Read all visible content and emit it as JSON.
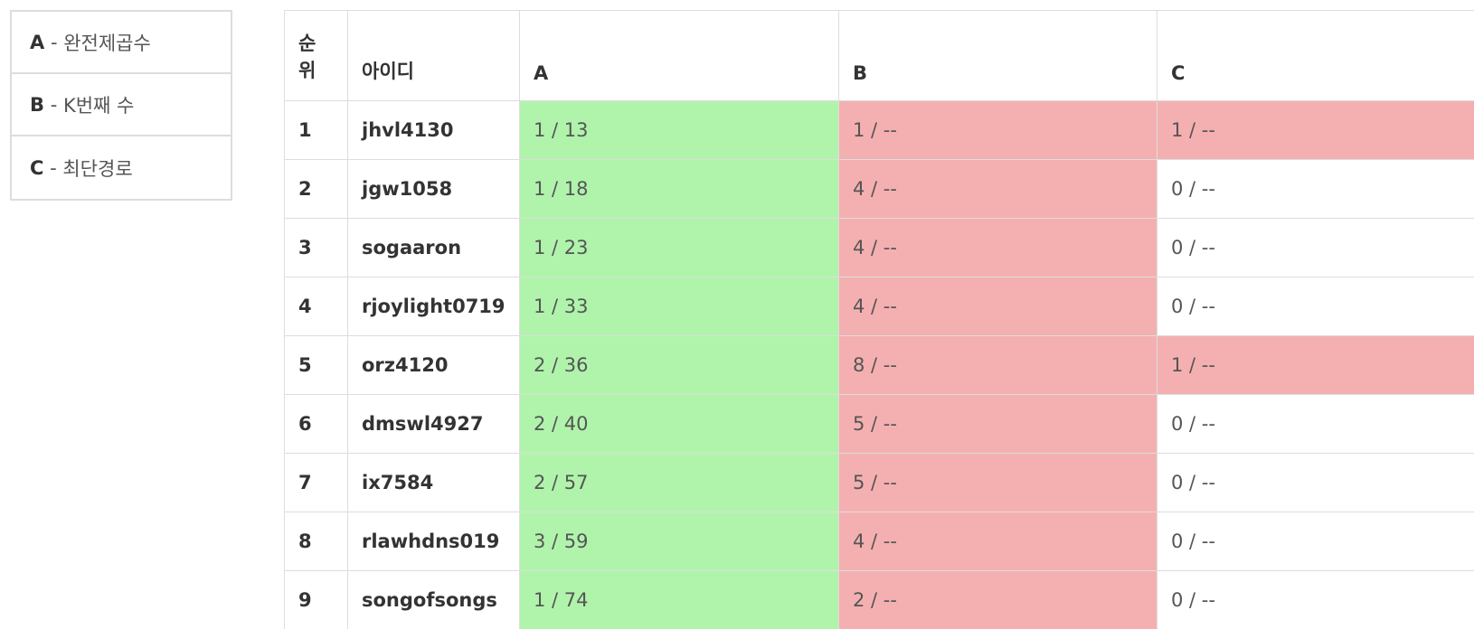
{
  "problems": [
    {
      "id": "A",
      "sep": " - ",
      "title": "완전제곱수"
    },
    {
      "id": "B",
      "sep": " - ",
      "title": "K번째 수"
    },
    {
      "id": "C",
      "sep": " - ",
      "title": "최단경로"
    }
  ],
  "table": {
    "headers": {
      "rank_line1": "순",
      "rank_line2": "위",
      "user": "아이디",
      "a": "A",
      "b": "B",
      "c": "C"
    },
    "rows": [
      {
        "rank": "1",
        "user": "jhvl4130",
        "a": "1 / 13",
        "b": "1 / --",
        "c": "1 / --",
        "a_status": "solved",
        "b_status": "failed",
        "c_status": "failed"
      },
      {
        "rank": "2",
        "user": "jgw1058",
        "a": "1 / 18",
        "b": "4 / --",
        "c": "0 / --",
        "a_status": "solved",
        "b_status": "failed",
        "c_status": "none"
      },
      {
        "rank": "3",
        "user": "sogaaron",
        "a": "1 / 23",
        "b": "4 / --",
        "c": "0 / --",
        "a_status": "solved",
        "b_status": "failed",
        "c_status": "none"
      },
      {
        "rank": "4",
        "user": "rjoylight0719",
        "a": "1 / 33",
        "b": "4 / --",
        "c": "0 / --",
        "a_status": "solved",
        "b_status": "failed",
        "c_status": "none"
      },
      {
        "rank": "5",
        "user": "orz4120",
        "a": "2 / 36",
        "b": "8 / --",
        "c": "1 / --",
        "a_status": "solved",
        "b_status": "failed",
        "c_status": "failed"
      },
      {
        "rank": "6",
        "user": "dmswl4927",
        "a": "2 / 40",
        "b": "5 / --",
        "c": "0 / --",
        "a_status": "solved",
        "b_status": "failed",
        "c_status": "none"
      },
      {
        "rank": "7",
        "user": "ix7584",
        "a": "2 / 57",
        "b": "5 / --",
        "c": "0 / --",
        "a_status": "solved",
        "b_status": "failed",
        "c_status": "none"
      },
      {
        "rank": "8",
        "user": "rlawhdns019",
        "a": "3 / 59",
        "b": "4 / --",
        "c": "0 / --",
        "a_status": "solved",
        "b_status": "failed",
        "c_status": "none"
      },
      {
        "rank": "9",
        "user": "songofsongs",
        "a": "1 / 74",
        "b": "2 / --",
        "c": "0 / --",
        "a_status": "solved",
        "b_status": "failed",
        "c_status": "none"
      }
    ]
  },
  "colors": {
    "solved": "#b0f4ac",
    "failed": "#f4b0b1",
    "border": "#dddddd"
  }
}
